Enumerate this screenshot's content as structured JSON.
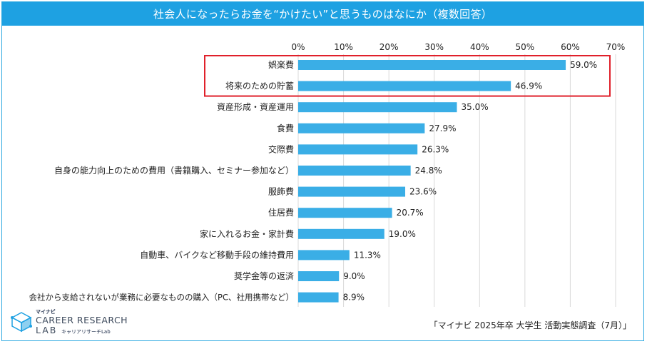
{
  "chart_data": {
    "type": "bar",
    "orientation": "horizontal",
    "title": "社会人になったらお金を“かけたい”と思うものはなにか（複数回答）",
    "categories": [
      "娯楽費",
      "将来のための貯蓄",
      "資産形成・資産運用",
      "食費",
      "交際費",
      "自身の能力向上のための費用（書籍購入、セミナー参加など）",
      "服飾費",
      "住居費",
      "家に入れるお金・家計費",
      "自動車、バイクなど移動手段の維持費用",
      "奨学金等の返済",
      "会社から支給されないが業務に必要なものの購入（PC、社用携帯など）"
    ],
    "values": [
      59.0,
      46.9,
      35.0,
      27.9,
      26.3,
      24.8,
      23.6,
      20.7,
      19.0,
      11.3,
      9.0,
      8.9
    ],
    "value_labels": [
      "59.0%",
      "46.9%",
      "35.0%",
      "27.9%",
      "26.3%",
      "24.8%",
      "23.6%",
      "20.7%",
      "19.0%",
      "11.3%",
      "9.0%",
      "8.9%"
    ],
    "xlim": [
      0,
      70
    ],
    "ticks": [
      0,
      10,
      20,
      30,
      40,
      50,
      60,
      70
    ],
    "tick_labels": [
      "0%",
      "10%",
      "20%",
      "30%",
      "40%",
      "50%",
      "60%",
      "70%"
    ],
    "xlabel": "",
    "ylabel": "",
    "grid": true,
    "highlighted": [
      "娯楽費",
      "将来のための貯蓄"
    ]
  },
  "colors": {
    "title_bg": "#1ea1e2",
    "bar": "#3aaee6",
    "highlight_box": "#e0202a",
    "grid": "#d9d9d9"
  },
  "logo": {
    "small_text": "マイナビ",
    "main_text": "CAREER RESEARCH",
    "lab_text": "LAB",
    "sub_text": "キャリアリサーチLab"
  },
  "source": "「マイナビ 2025年卒 大学生 活動実態調査（7月）」"
}
